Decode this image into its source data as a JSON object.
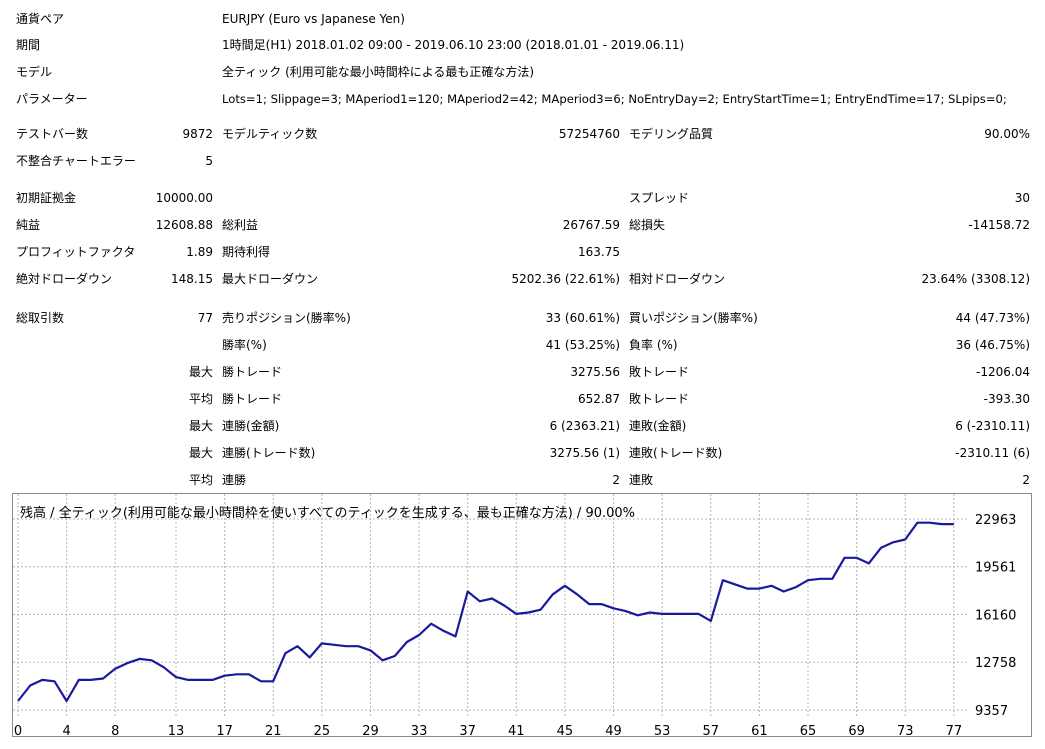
{
  "header": {
    "pair_label": "通貨ペア",
    "pair_value": "EURJPY (Euro vs Japanese Yen)",
    "period_label": "期間",
    "period_value": "1時間足(H1) 2018.01.02 09:00 - 2019.06.10 23:00 (2018.01.01 - 2019.06.11)",
    "model_label": "モデル",
    "model_value": "全ティック (利用可能な最小時間枠による最も正確な方法)",
    "params_label": "パラメーター",
    "params_value": "Lots=1; Slippage=3; MAperiod1=120; MAperiod2=42; MAperiod3=6; NoEntryDay=2; EntryStartTime=1; EntryEndTime=17; SLpips=0;"
  },
  "stats": {
    "bars_label": "テストバー数",
    "bars_value": "9872",
    "ticks_label": "モデルティック数",
    "ticks_value": "57254760",
    "quality_label": "モデリング品質",
    "quality_value": "90.00%",
    "mismatch_label": "不整合チャートエラー",
    "mismatch_value": "5",
    "deposit_label": "初期証拠金",
    "deposit_value": "10000.00",
    "spread_label": "スプレッド",
    "spread_value": "30",
    "net_label": "純益",
    "net_value": "12608.88",
    "gross_profit_label": "総利益",
    "gross_profit_value": "26767.59",
    "gross_loss_label": "総損失",
    "gross_loss_value": "-14158.72",
    "pf_label": "プロフィットファクタ",
    "pf_value": "1.89",
    "expected_label": "期待利得",
    "expected_value": "163.75",
    "abs_dd_label": "絶対ドローダウン",
    "abs_dd_value": "148.15",
    "max_dd_label": "最大ドローダウン",
    "max_dd_value": "5202.36 (22.61%)",
    "rel_dd_label": "相対ドローダウン",
    "rel_dd_value": "23.64% (3308.12)",
    "total_trades_label": "総取引数",
    "total_trades_value": "77",
    "short_label": "売りポジション(勝率%)",
    "short_value": "33 (60.61%)",
    "long_label": "買いポジション(勝率%)",
    "long_value": "44 (47.73%)",
    "win_rate_label": "勝率(%)",
    "win_rate_value": "41 (53.25%)",
    "loss_rate_label": "負率 (%)",
    "loss_rate_value": "36 (46.75%)",
    "max_prefix": "最大",
    "avg_prefix": "平均",
    "largest_win_label": "勝トレード",
    "largest_win_value": "3275.56",
    "largest_loss_label": "敗トレード",
    "largest_loss_value": "-1206.04",
    "avg_win_label": "勝トレード",
    "avg_win_value": "652.87",
    "avg_loss_label": "敗トレード",
    "avg_loss_value": "-393.30",
    "cons_win_amt_label": "連勝(金額)",
    "cons_win_amt_value": "6 (2363.21)",
    "cons_loss_amt_label": "連敗(金額)",
    "cons_loss_amt_value": "6 (-2310.11)",
    "cons_win_cnt_label": "連勝(トレード数)",
    "cons_win_cnt_value": "3275.56 (1)",
    "cons_loss_cnt_label": "連敗(トレード数)",
    "cons_loss_cnt_value": "-2310.11 (6)",
    "avg_cons_win_label": "連勝",
    "avg_cons_win_value": "2",
    "avg_cons_loss_label": "連敗",
    "avg_cons_loss_value": "2"
  },
  "chart_data": {
    "type": "line",
    "title": "残高 / 全ティック(利用可能な最小時間枠を使いすべてのティックを生成する、最も正確な方法) / 90.00%",
    "line_color": "#1a1a9e",
    "grid": true,
    "xlim": [
      0,
      78
    ],
    "ylim": [
      9357,
      24100
    ],
    "x_ticks": [
      0,
      4,
      8,
      13,
      17,
      21,
      25,
      29,
      33,
      37,
      41,
      45,
      49,
      53,
      57,
      61,
      65,
      69,
      73,
      77
    ],
    "y_ticks": [
      9357,
      12758,
      16160,
      19561,
      22963
    ],
    "x": [
      0,
      1,
      2,
      3,
      4,
      5,
      6,
      7,
      8,
      9,
      10,
      11,
      12,
      13,
      14,
      15,
      16,
      17,
      18,
      19,
      20,
      21,
      22,
      23,
      24,
      25,
      26,
      27,
      28,
      29,
      30,
      31,
      32,
      33,
      34,
      35,
      36,
      37,
      38,
      39,
      40,
      41,
      42,
      43,
      44,
      45,
      46,
      47,
      48,
      49,
      50,
      51,
      52,
      53,
      54,
      55,
      56,
      57,
      58,
      59,
      60,
      61,
      62,
      63,
      64,
      65,
      66,
      67,
      68,
      69,
      70,
      71,
      72,
      73,
      74,
      75,
      76,
      77
    ],
    "values": [
      10000,
      11100,
      11500,
      11400,
      10000,
      11500,
      11500,
      11600,
      12300,
      12700,
      13000,
      12900,
      12400,
      11700,
      11500,
      11500,
      11500,
      11800,
      11900,
      11900,
      11400,
      11400,
      13400,
      13900,
      13100,
      14100,
      14000,
      13900,
      13900,
      13600,
      12900,
      13200,
      14200,
      14700,
      15500,
      15000,
      14600,
      17800,
      17100,
      17300,
      16800,
      16200,
      16300,
      16500,
      17600,
      18200,
      17600,
      16900,
      16900,
      16600,
      16400,
      16100,
      16300,
      16200,
      16200,
      16200,
      16200,
      15700,
      18600,
      18300,
      18000,
      18000,
      18200,
      17800,
      18100,
      18600,
      18700,
      18700,
      20200,
      20200,
      19800,
      20900,
      21300,
      21500,
      22700,
      22700,
      22600,
      22600
    ]
  }
}
